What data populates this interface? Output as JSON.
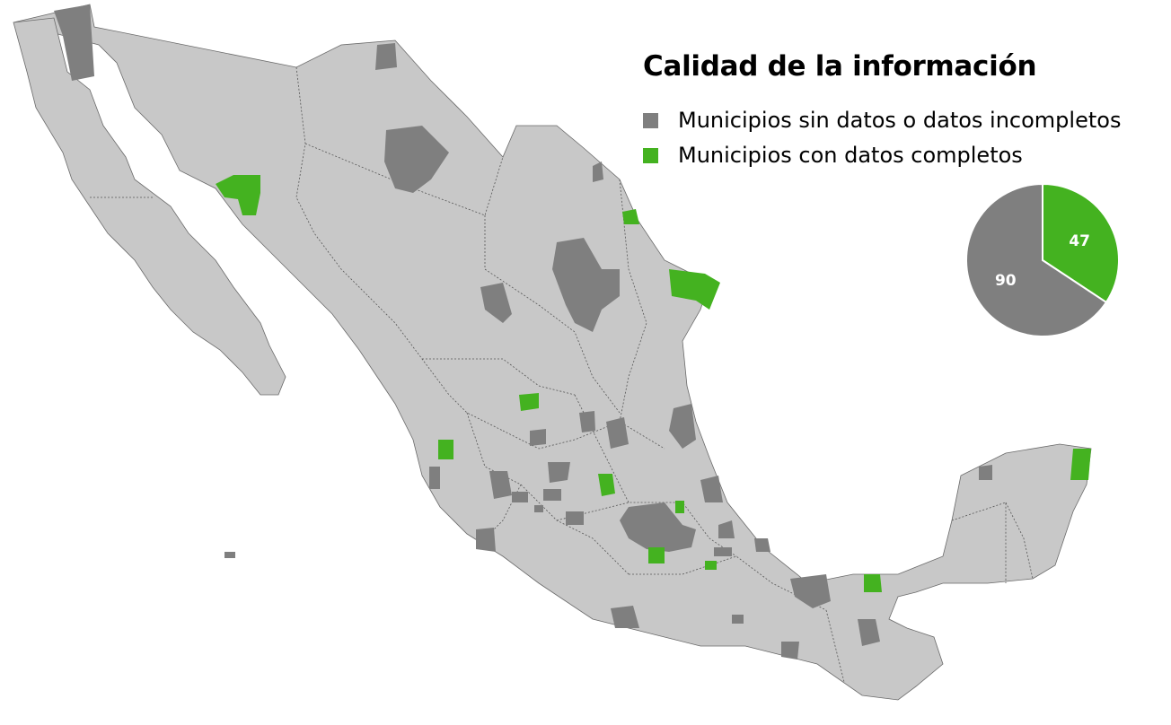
{
  "legend": {
    "title": "Calidad de la información",
    "items": [
      {
        "label": "Municipios sin datos o datos incompletos",
        "color": "#7f7f7f"
      },
      {
        "label": "Municipios con datos completos",
        "color": "#44b220"
      }
    ]
  },
  "chart_data": {
    "type": "pie",
    "slices": [
      {
        "label": "47",
        "value": 47,
        "color": "#44b220"
      },
      {
        "label": "90",
        "value": 90,
        "color": "#7f7f7f"
      }
    ]
  },
  "map": {
    "base_color": "#c8c8c8",
    "border_color": "#444444"
  }
}
